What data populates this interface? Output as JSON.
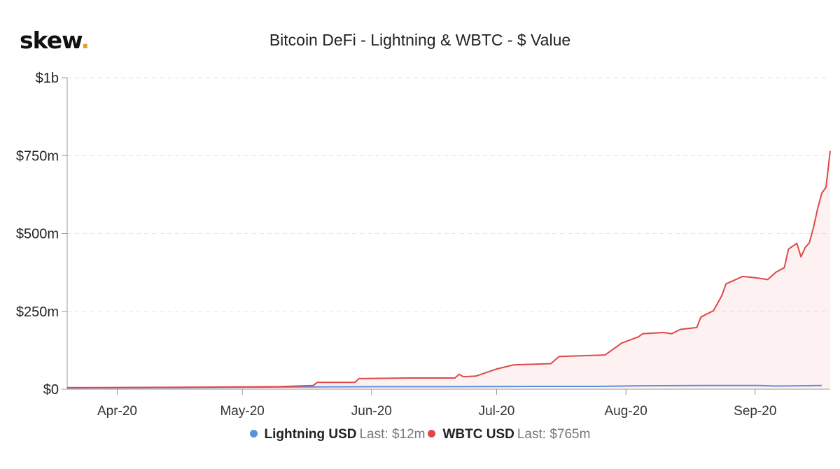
{
  "logo": {
    "text": "skew",
    "dot": "."
  },
  "chart_data": {
    "type": "area",
    "title": "Bitcoin DeFi - Lightning & WBTC - $ Value",
    "xlabel": "",
    "ylabel": "",
    "ylim": [
      0,
      1000
    ],
    "y_unit": "millions USD",
    "yticks": [
      {
        "value": 0,
        "label": "$0"
      },
      {
        "value": 250,
        "label": "$250m"
      },
      {
        "value": 500,
        "label": "$500m"
      },
      {
        "value": 750,
        "label": "$750m"
      },
      {
        "value": 1000,
        "label": "$1b"
      }
    ],
    "xlim": [
      "2020-03-20",
      "2020-09-17"
    ],
    "xticks": [
      {
        "date": "2020-04-01",
        "label": "Apr-20"
      },
      {
        "date": "2020-05-01",
        "label": "May-20"
      },
      {
        "date": "2020-06-01",
        "label": "Jun-20"
      },
      {
        "date": "2020-07-01",
        "label": "Jul-20"
      },
      {
        "date": "2020-08-01",
        "label": "Aug-20"
      },
      {
        "date": "2020-09-01",
        "label": "Sep-20"
      }
    ],
    "grid": true,
    "legend_position": "bottom",
    "series": [
      {
        "name": "Lightning USD",
        "last_label": "Last: $12m",
        "color": "#5b8fdc",
        "fill": false,
        "points": [
          [
            "2020-03-20",
            4
          ],
          [
            "2020-04-15",
            5
          ],
          [
            "2020-05-10",
            7
          ],
          [
            "2020-06-01",
            8
          ],
          [
            "2020-06-20",
            8
          ],
          [
            "2020-07-10",
            9
          ],
          [
            "2020-07-25",
            9
          ],
          [
            "2020-08-05",
            11
          ],
          [
            "2020-08-20",
            12
          ],
          [
            "2020-09-02",
            12
          ],
          [
            "2020-09-06",
            10
          ],
          [
            "2020-09-17",
            12
          ]
        ]
      },
      {
        "name": "WBTC USD",
        "last_label": "Last: $765m",
        "color": "#e04848",
        "fill": true,
        "points": [
          [
            "2020-03-20",
            5
          ],
          [
            "2020-04-15",
            6
          ],
          [
            "2020-05-10",
            8
          ],
          [
            "2020-05-14",
            10
          ],
          [
            "2020-05-18",
            12
          ],
          [
            "2020-05-19",
            22
          ],
          [
            "2020-05-28",
            22
          ],
          [
            "2020-05-29",
            34
          ],
          [
            "2020-06-10",
            36
          ],
          [
            "2020-06-21",
            36
          ],
          [
            "2020-06-22",
            48
          ],
          [
            "2020-06-23",
            40
          ],
          [
            "2020-06-26",
            42
          ],
          [
            "2020-07-01",
            65
          ],
          [
            "2020-07-05",
            78
          ],
          [
            "2020-07-14",
            82
          ],
          [
            "2020-07-16",
            105
          ],
          [
            "2020-07-27",
            110
          ],
          [
            "2020-07-31",
            148
          ],
          [
            "2020-08-04",
            168
          ],
          [
            "2020-08-05",
            178
          ],
          [
            "2020-08-10",
            182
          ],
          [
            "2020-08-12",
            178
          ],
          [
            "2020-08-14",
            192
          ],
          [
            "2020-08-18",
            198
          ],
          [
            "2020-08-19",
            232
          ],
          [
            "2020-08-22",
            252
          ],
          [
            "2020-08-24",
            300
          ],
          [
            "2020-08-25",
            338
          ],
          [
            "2020-08-27",
            350
          ],
          [
            "2020-08-29",
            362
          ],
          [
            "2020-09-01",
            358
          ],
          [
            "2020-09-04",
            352
          ],
          [
            "2020-09-06",
            376
          ],
          [
            "2020-09-08",
            390
          ],
          [
            "2020-09-09",
            450
          ],
          [
            "2020-09-11",
            468
          ],
          [
            "2020-09-12",
            425
          ],
          [
            "2020-09-13",
            455
          ],
          [
            "2020-09-14",
            470
          ],
          [
            "2020-09-15",
            520
          ],
          [
            "2020-09-16",
            580
          ],
          [
            "2020-09-17",
            630
          ],
          [
            "2020-09-18",
            648
          ],
          [
            "2020-09-19",
            765
          ]
        ]
      }
    ]
  }
}
